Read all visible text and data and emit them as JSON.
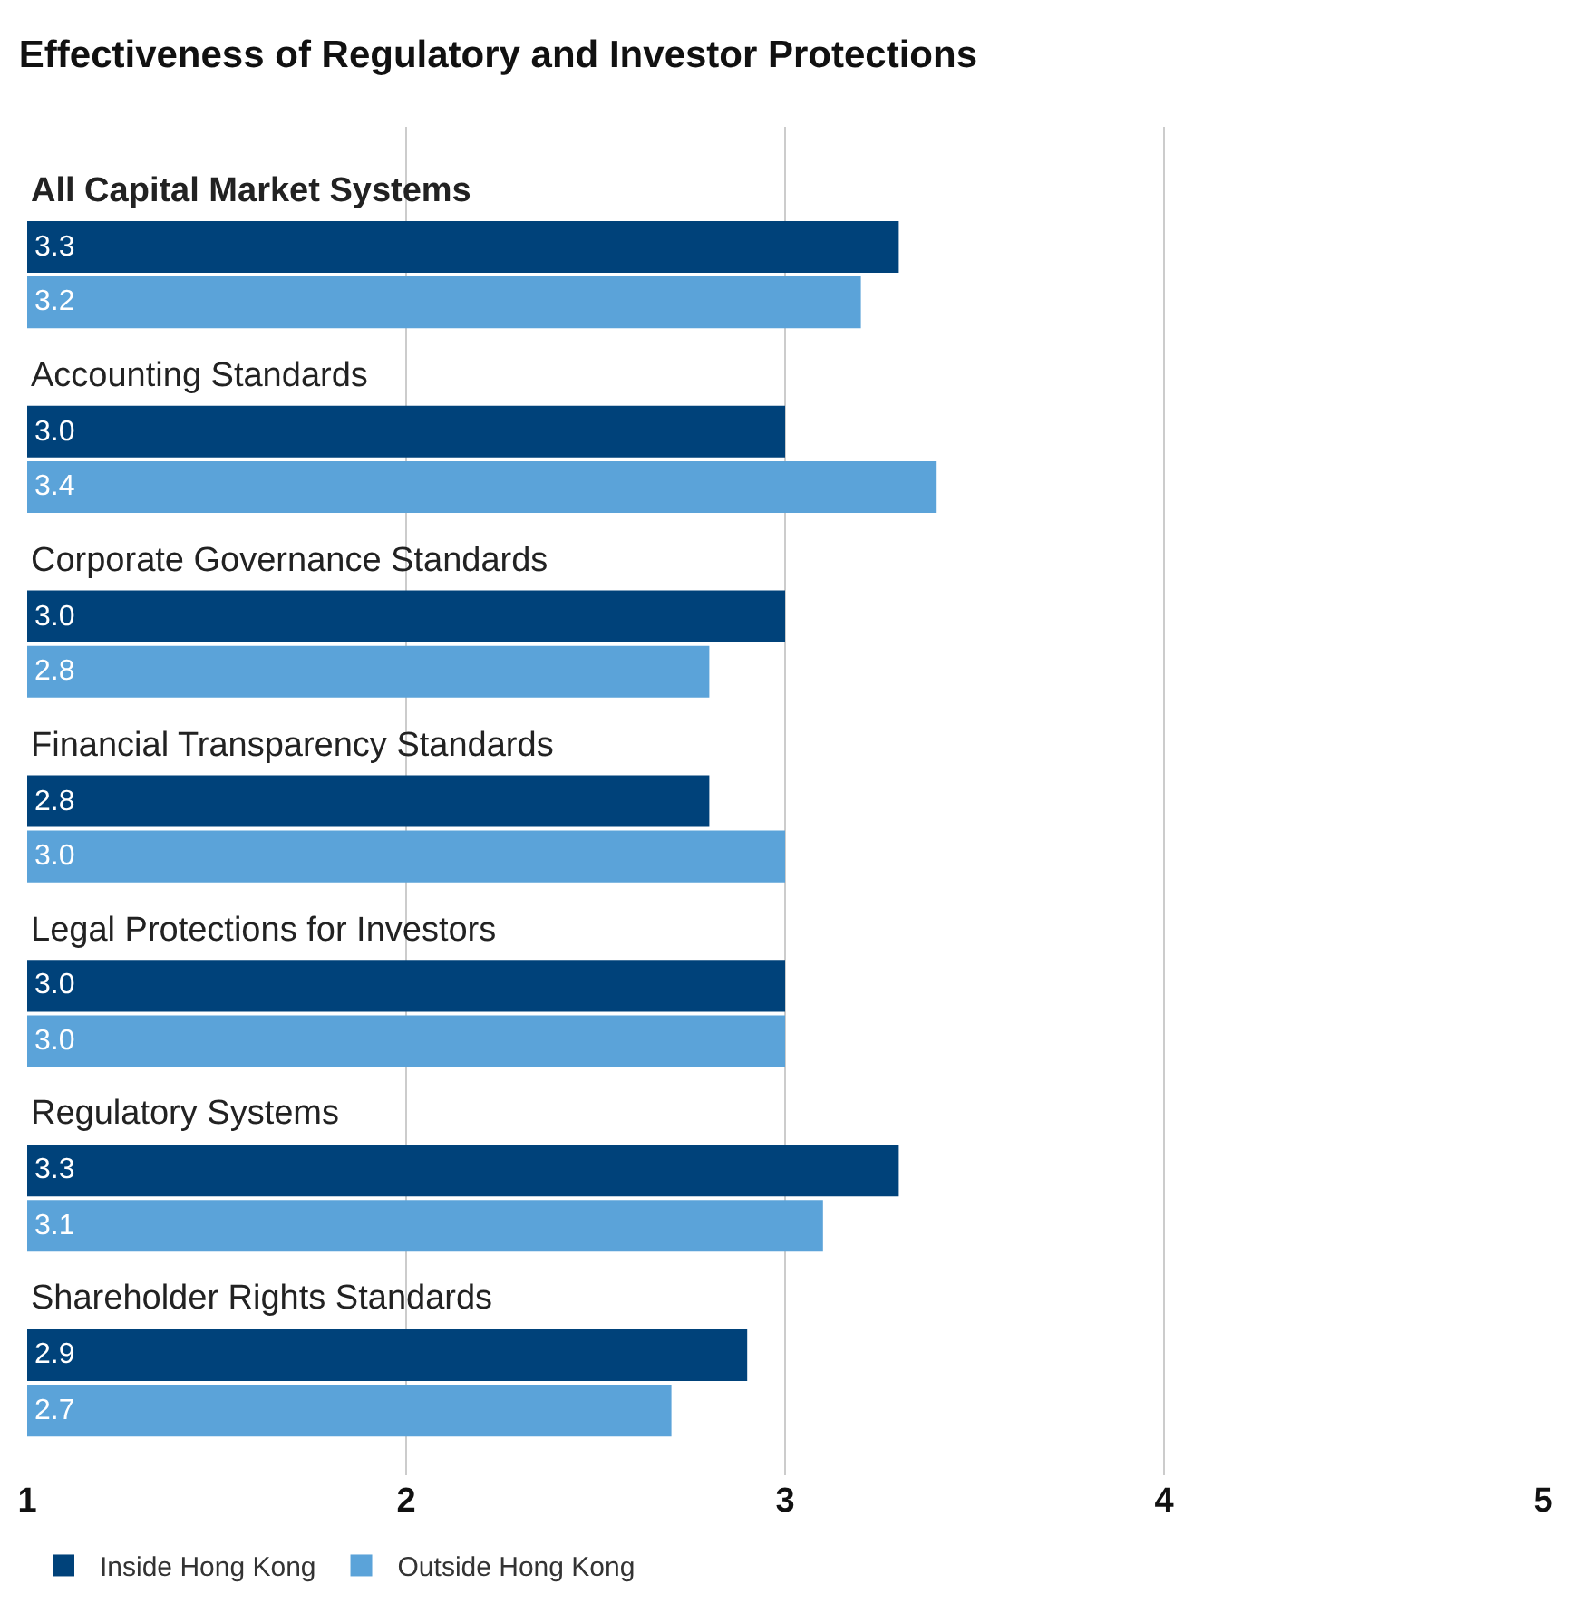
{
  "chart_data": {
    "type": "bar",
    "orientation": "horizontal",
    "title": "Effectiveness of Regulatory and Investor Protections",
    "categories": [
      "All Capital Market Systems",
      "Accounting Standards",
      "Corporate Governance Standards",
      "Financial Transparency Standards",
      "Legal Protections for Investors",
      "Regulatory Systems",
      "Shareholder Rights Standards"
    ],
    "series": [
      {
        "name": "Inside Hong Kong",
        "color": "#00427a",
        "values": [
          3.3,
          3.0,
          3.0,
          2.8,
          3.0,
          3.3,
          2.9
        ],
        "value_labels": [
          "3.3",
          "3.0",
          "3.0",
          "2.8",
          "3.0",
          "3.3",
          "2.9"
        ]
      },
      {
        "name": "Outside Hong Kong",
        "color": "#5ba3d9",
        "values": [
          3.2,
          3.4,
          2.8,
          3.0,
          3.0,
          3.1,
          2.7
        ],
        "value_labels": [
          "3.2",
          "3.4",
          "2.8",
          "3.0",
          "3.0",
          "3.1",
          "2.7"
        ]
      }
    ],
    "xlim": [
      1,
      5
    ],
    "xticks": [
      1,
      2,
      3,
      4,
      5
    ],
    "grid": "x",
    "legend": "bottom left"
  }
}
